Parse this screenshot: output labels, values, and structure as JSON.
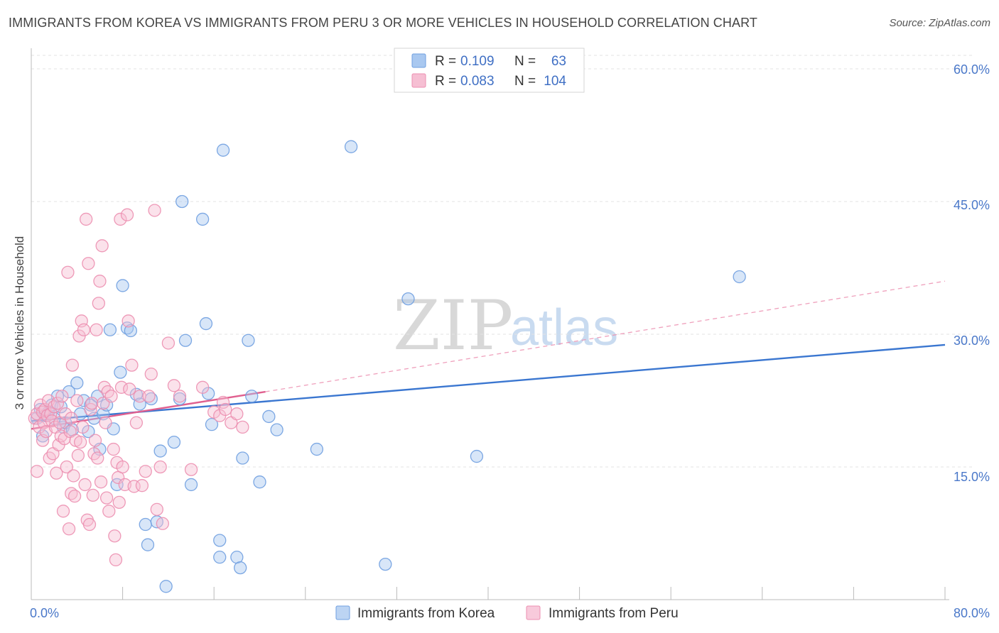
{
  "title": "IMMIGRANTS FROM KOREA VS IMMIGRANTS FROM PERU 3 OR MORE VEHICLES IN HOUSEHOLD CORRELATION CHART",
  "source": "Source: ZipAtlas.com",
  "watermark": {
    "zip": "ZIP",
    "atlas": "atlas"
  },
  "legend": {
    "rows": [
      {
        "r_label": "R =",
        "r_value": "0.109",
        "n_label": "N =",
        "n_value": "63",
        "color": "#a9c8f0",
        "stroke": "#6f9fe0"
      },
      {
        "r_label": "R =",
        "r_value": "0.083",
        "n_label": "N =",
        "n_value": "104",
        "color": "#f6bfd3",
        "stroke": "#ec8fb0"
      }
    ]
  },
  "bottom_legend": [
    {
      "label": "Immigrants from Korea",
      "color": "#bcd4f3",
      "stroke": "#6f9fe0"
    },
    {
      "label": "Immigrants from Peru",
      "color": "#f8cadb",
      "stroke": "#ec8fb0"
    }
  ],
  "chart_data": {
    "type": "scatter",
    "ylabel": "3 or more Vehicles in Household",
    "xlabel": "",
    "xlim": [
      0,
      80
    ],
    "ylim": [
      0,
      60
    ],
    "x_tick_labels": [
      "0.0%",
      "80.0%"
    ],
    "y_tick_labels": [
      "15.0%",
      "30.0%",
      "45.0%",
      "60.0%"
    ],
    "y_ticks": [
      15,
      30,
      45,
      60
    ],
    "x_minor_ticks": [
      0,
      8,
      16,
      24,
      32,
      40,
      48,
      56,
      64,
      72,
      80
    ],
    "series": [
      {
        "name": "Immigrants from Korea",
        "color": "#6f9fe0",
        "fill": "#a9c8f0",
        "trend": {
          "x": [
            0,
            80
          ],
          "y": [
            20.2,
            28.8
          ]
        },
        "points": [
          [
            0.5,
            20.5
          ],
          [
            0.8,
            21.5
          ],
          [
            1.0,
            18.5
          ],
          [
            1.2,
            20.8
          ],
          [
            1.5,
            21.2
          ],
          [
            1.8,
            22.0
          ],
          [
            2.0,
            20.5
          ],
          [
            2.3,
            23.0
          ],
          [
            2.6,
            21.8
          ],
          [
            2.8,
            19.5
          ],
          [
            3.0,
            20.0
          ],
          [
            3.3,
            23.5
          ],
          [
            3.6,
            19.2
          ],
          [
            4.0,
            24.5
          ],
          [
            4.3,
            21.0
          ],
          [
            4.6,
            22.5
          ],
          [
            5.0,
            19.0
          ],
          [
            5.2,
            22.0
          ],
          [
            5.5,
            20.5
          ],
          [
            5.8,
            23.0
          ],
          [
            6.0,
            17.0
          ],
          [
            6.3,
            21.0
          ],
          [
            6.6,
            22.0
          ],
          [
            6.9,
            30.5
          ],
          [
            7.2,
            19.3
          ],
          [
            7.5,
            13.0
          ],
          [
            7.8,
            25.7
          ],
          [
            8.0,
            35.5
          ],
          [
            8.4,
            30.7
          ],
          [
            8.7,
            30.4
          ],
          [
            9.2,
            23.2
          ],
          [
            9.5,
            22.1
          ],
          [
            10.0,
            8.5
          ],
          [
            10.2,
            6.2
          ],
          [
            10.5,
            22.7
          ],
          [
            11.0,
            8.8
          ],
          [
            11.3,
            16.8
          ],
          [
            11.8,
            1.5
          ],
          [
            12.5,
            17.8
          ],
          [
            13.0,
            22.7
          ],
          [
            13.2,
            45.0
          ],
          [
            13.5,
            29.3
          ],
          [
            14.0,
            13.0
          ],
          [
            15.0,
            43.0
          ],
          [
            15.3,
            31.2
          ],
          [
            15.5,
            23.3
          ],
          [
            15.8,
            19.8
          ],
          [
            16.5,
            6.7
          ],
          [
            16.5,
            4.8
          ],
          [
            16.8,
            50.8
          ],
          [
            18.0,
            4.8
          ],
          [
            18.3,
            3.6
          ],
          [
            18.5,
            16.0
          ],
          [
            19.0,
            29.3
          ],
          [
            19.3,
            23.0
          ],
          [
            20.0,
            13.3
          ],
          [
            20.8,
            20.7
          ],
          [
            21.5,
            19.2
          ],
          [
            25.0,
            17.0
          ],
          [
            28.0,
            51.2
          ],
          [
            31.0,
            4.0
          ],
          [
            33.0,
            34.0
          ],
          [
            39.0,
            16.2
          ],
          [
            62.0,
            36.5
          ]
        ]
      },
      {
        "name": "Immigrants from Peru",
        "color": "#ec8fb0",
        "fill": "#f6bfd3",
        "trend": {
          "x": [
            0,
            20.5
          ],
          "y": [
            19.3,
            23.5
          ]
        },
        "trend_ext": {
          "x": [
            20.5,
            80
          ],
          "y": [
            23.5,
            36.0
          ]
        },
        "points": [
          [
            0.3,
            20.5
          ],
          [
            0.5,
            21.0
          ],
          [
            0.5,
            14.5
          ],
          [
            0.7,
            19.5
          ],
          [
            0.8,
            22.0
          ],
          [
            1.0,
            21.2
          ],
          [
            1.0,
            18.0
          ],
          [
            1.1,
            20.0
          ],
          [
            1.2,
            21.5
          ],
          [
            1.3,
            19.0
          ],
          [
            1.4,
            20.8
          ],
          [
            1.5,
            22.5
          ],
          [
            1.6,
            16.0
          ],
          [
            1.7,
            21.0
          ],
          [
            1.8,
            20.2
          ],
          [
            1.9,
            16.5
          ],
          [
            2.0,
            21.8
          ],
          [
            2.1,
            19.5
          ],
          [
            2.2,
            14.3
          ],
          [
            2.3,
            22.2
          ],
          [
            2.4,
            17.5
          ],
          [
            2.5,
            20.0
          ],
          [
            2.6,
            18.5
          ],
          [
            2.7,
            23.0
          ],
          [
            2.8,
            10.0
          ],
          [
            2.9,
            18.2
          ],
          [
            3.0,
            21.0
          ],
          [
            3.1,
            15.0
          ],
          [
            3.2,
            37.0
          ],
          [
            3.3,
            8.0
          ],
          [
            3.4,
            19.0
          ],
          [
            3.5,
            12.0
          ],
          [
            3.5,
            20.5
          ],
          [
            3.6,
            26.5
          ],
          [
            3.7,
            14.0
          ],
          [
            3.8,
            11.7
          ],
          [
            3.9,
            18.0
          ],
          [
            4.0,
            22.5
          ],
          [
            4.1,
            16.3
          ],
          [
            4.2,
            29.8
          ],
          [
            4.3,
            17.8
          ],
          [
            4.4,
            31.5
          ],
          [
            4.5,
            19.5
          ],
          [
            4.6,
            30.5
          ],
          [
            4.7,
            13.0
          ],
          [
            4.8,
            43.0
          ],
          [
            4.9,
            9.0
          ],
          [
            5.0,
            38.0
          ],
          [
            5.1,
            8.5
          ],
          [
            5.2,
            21.5
          ],
          [
            5.3,
            22.2
          ],
          [
            5.4,
            11.8
          ],
          [
            5.5,
            16.5
          ],
          [
            5.6,
            18.0
          ],
          [
            5.7,
            30.5
          ],
          [
            5.8,
            16.0
          ],
          [
            5.9,
            33.5
          ],
          [
            6.0,
            36.0
          ],
          [
            6.1,
            13.3
          ],
          [
            6.2,
            40.0
          ],
          [
            6.3,
            22.2
          ],
          [
            6.4,
            24.0
          ],
          [
            6.5,
            20.0
          ],
          [
            6.6,
            11.5
          ],
          [
            6.7,
            23.5
          ],
          [
            6.8,
            10.0
          ],
          [
            7.0,
            23.0
          ],
          [
            7.2,
            17.0
          ],
          [
            7.3,
            7.2
          ],
          [
            7.4,
            4.5
          ],
          [
            7.5,
            15.5
          ],
          [
            7.6,
            13.8
          ],
          [
            7.7,
            11.0
          ],
          [
            7.8,
            43.0
          ],
          [
            7.9,
            24.0
          ],
          [
            8.0,
            15.0
          ],
          [
            8.2,
            13.0
          ],
          [
            8.4,
            43.5
          ],
          [
            8.5,
            31.5
          ],
          [
            8.6,
            23.8
          ],
          [
            8.8,
            26.5
          ],
          [
            9.0,
            12.8
          ],
          [
            9.2,
            20.0
          ],
          [
            9.5,
            23.0
          ],
          [
            9.7,
            12.9
          ],
          [
            10.0,
            14.5
          ],
          [
            10.3,
            23.0
          ],
          [
            10.5,
            25.5
          ],
          [
            10.8,
            44.0
          ],
          [
            11.0,
            10.2
          ],
          [
            11.3,
            15.0
          ],
          [
            11.5,
            8.6
          ],
          [
            12.0,
            29.0
          ],
          [
            12.5,
            24.2
          ],
          [
            13.0,
            23.0
          ],
          [
            14.0,
            14.7
          ],
          [
            15.0,
            24.0
          ],
          [
            16.0,
            21.2
          ],
          [
            16.5,
            20.8
          ],
          [
            16.8,
            22.3
          ],
          [
            17.0,
            21.5
          ],
          [
            17.5,
            20.0
          ],
          [
            18.0,
            21.0
          ],
          [
            18.5,
            19.5
          ]
        ]
      }
    ]
  }
}
